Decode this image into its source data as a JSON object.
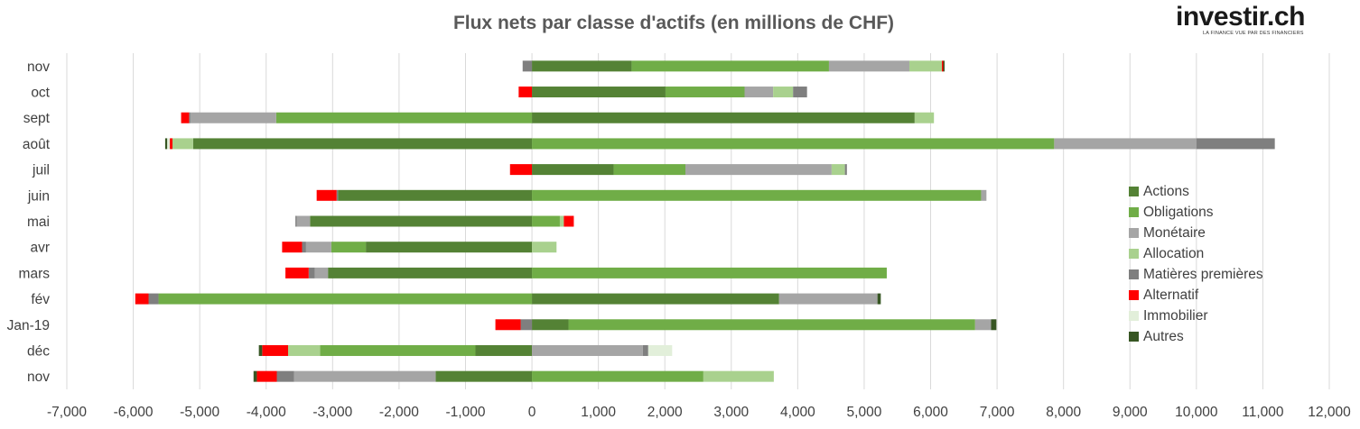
{
  "logo": {
    "text": "investir.ch",
    "tagline": "LA FINANCE VUE PAR DES FINANCIERS"
  },
  "chart_data": {
    "type": "bar",
    "orientation": "horizontal",
    "stacked": true,
    "title": "Flux nets par classe d'actifs (en millions de CHF)",
    "xlabel": "",
    "ylabel": "",
    "xlim": [
      -7000,
      12000
    ],
    "xticks": [
      -7000,
      -6000,
      -5000,
      -4000,
      -3000,
      -2000,
      -1000,
      0,
      1000,
      2000,
      3000,
      4000,
      5000,
      6000,
      7000,
      8000,
      9000,
      10000,
      11000,
      12000
    ],
    "xtick_labels": [
      "-7,000",
      "-6,000",
      "-5,000",
      "-4,000",
      "-3,000",
      "-2,000",
      "-1,000",
      "0",
      "1,000",
      "2,000",
      "3,000",
      "4,000",
      "5,000",
      "6,000",
      "7,000",
      "8,000",
      "9,000",
      "10,000",
      "11,000",
      "12,000"
    ],
    "grid": "vertical",
    "legend_position": "right",
    "categories": [
      "nov",
      "déc",
      "Jan-19",
      "fév",
      "mars",
      "avr",
      "mai",
      "juin",
      "juil",
      "août",
      "sept",
      "oct",
      "nov"
    ],
    "series": [
      {
        "name": "Actions",
        "color": "#548235",
        "values": [
          -1450,
          -850,
          550,
          3720,
          -3070,
          -2500,
          -3340,
          -2920,
          1230,
          -5100,
          5760,
          2010,
          1500
        ]
      },
      {
        "name": "Obligations",
        "color": "#70AD47",
        "values": [
          2580,
          -2340,
          6120,
          -5620,
          5340,
          -520,
          420,
          6760,
          1080,
          7860,
          -3850,
          1190,
          2970
        ]
      },
      {
        "name": "Monétaire",
        "color": "#A5A5A5",
        "values": [
          -2130,
          1670,
          240,
          1480,
          -200,
          -380,
          -200,
          80,
          2200,
          2140,
          -1290,
          430,
          1210
        ]
      },
      {
        "name": "Allocation",
        "color": "#A9D18E",
        "values": [
          1060,
          -480,
          0,
          0,
          0,
          370,
          60,
          0,
          200,
          -310,
          290,
          300,
          490
        ]
      },
      {
        "name": "Matières premières",
        "color": "#7F7F7F",
        "values": [
          -260,
          80,
          -170,
          -150,
          -90,
          -60,
          -20,
          -20,
          30,
          1180,
          -20,
          210,
          -140
        ]
      },
      {
        "name": "Alternatif",
        "color": "#FF0000",
        "values": [
          -300,
          -390,
          -380,
          -200,
          -350,
          -300,
          150,
          -300,
          -330,
          -40,
          -120,
          -200,
          20
        ]
      },
      {
        "name": "Immobilier",
        "color": "#E2EFDA",
        "values": [
          0,
          360,
          0,
          0,
          0,
          0,
          0,
          0,
          0,
          -40,
          0,
          0,
          0
        ]
      },
      {
        "name": "Autres",
        "color": "#375623",
        "values": [
          -50,
          -50,
          80,
          50,
          0,
          0,
          0,
          0,
          0,
          -30,
          0,
          0,
          20
        ]
      }
    ]
  }
}
